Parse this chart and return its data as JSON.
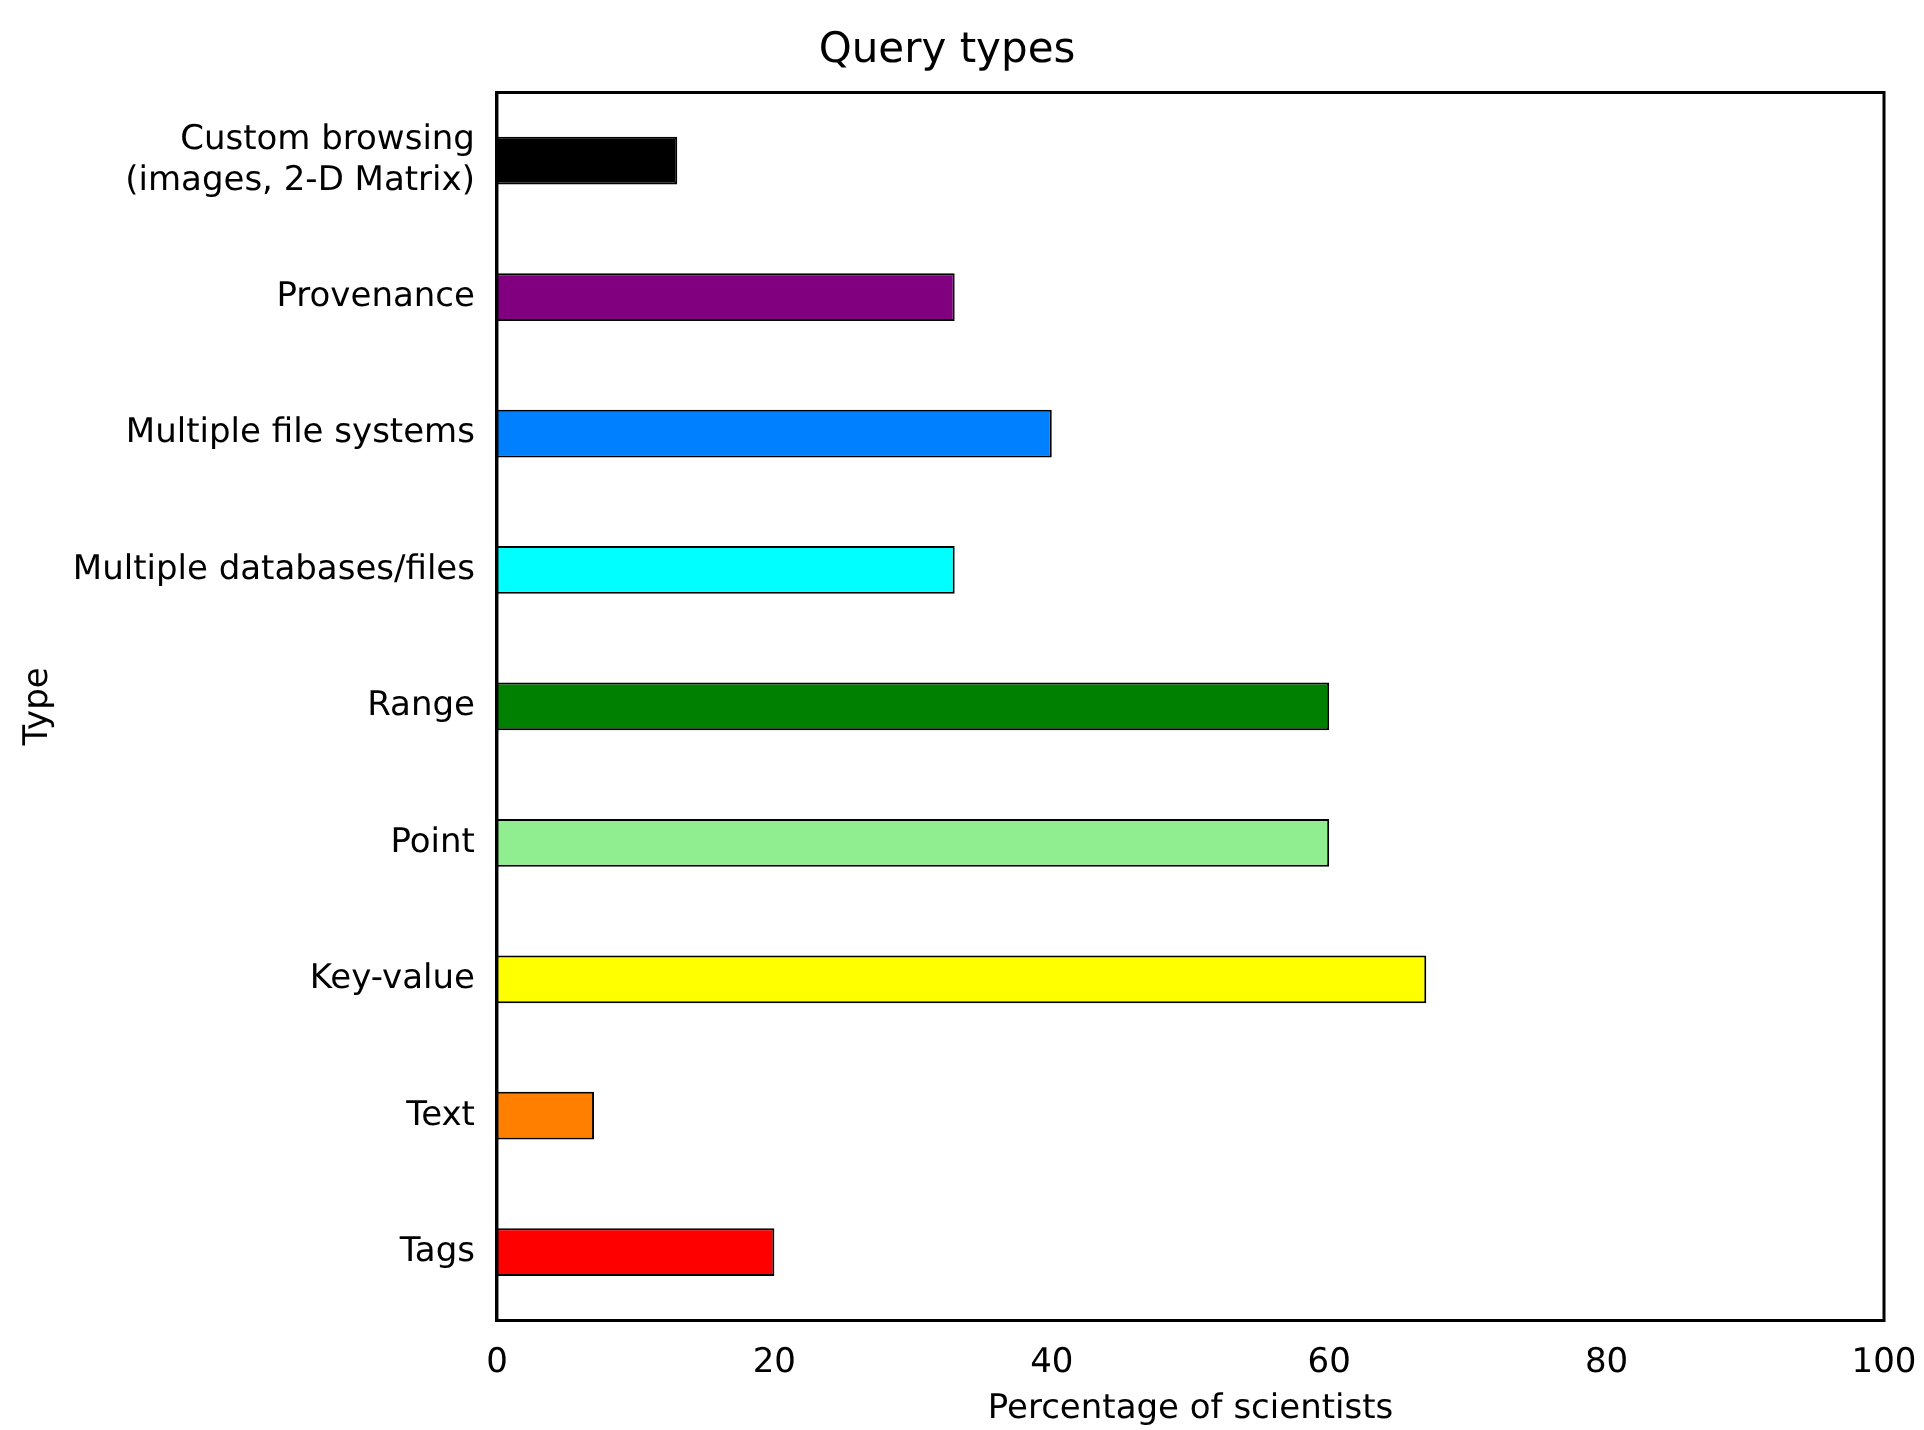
{
  "chart_data": {
    "type": "bar",
    "orientation": "horizontal",
    "title": "Query types",
    "xlabel": "Percentage of scientists",
    "ylabel": "Type",
    "categories": [
      "Custom browsing\n(images, 2-D Matrix)",
      "Provenance",
      "Multiple file systems",
      "Multiple databases/files",
      "Range",
      "Point",
      "Key-value",
      "Text",
      "Tags"
    ],
    "values": [
      13,
      33,
      40,
      33,
      60,
      60,
      67,
      7,
      20
    ],
    "colors": [
      "#000000",
      "#800080",
      "#0080ff",
      "#00ffff",
      "#008000",
      "#90ee90",
      "#ffff00",
      "#ff8000",
      "#ff0000"
    ],
    "xlim": [
      0,
      100
    ],
    "xticks": [
      0,
      20,
      40,
      60,
      80,
      100
    ],
    "grid": false,
    "legend": false
  }
}
